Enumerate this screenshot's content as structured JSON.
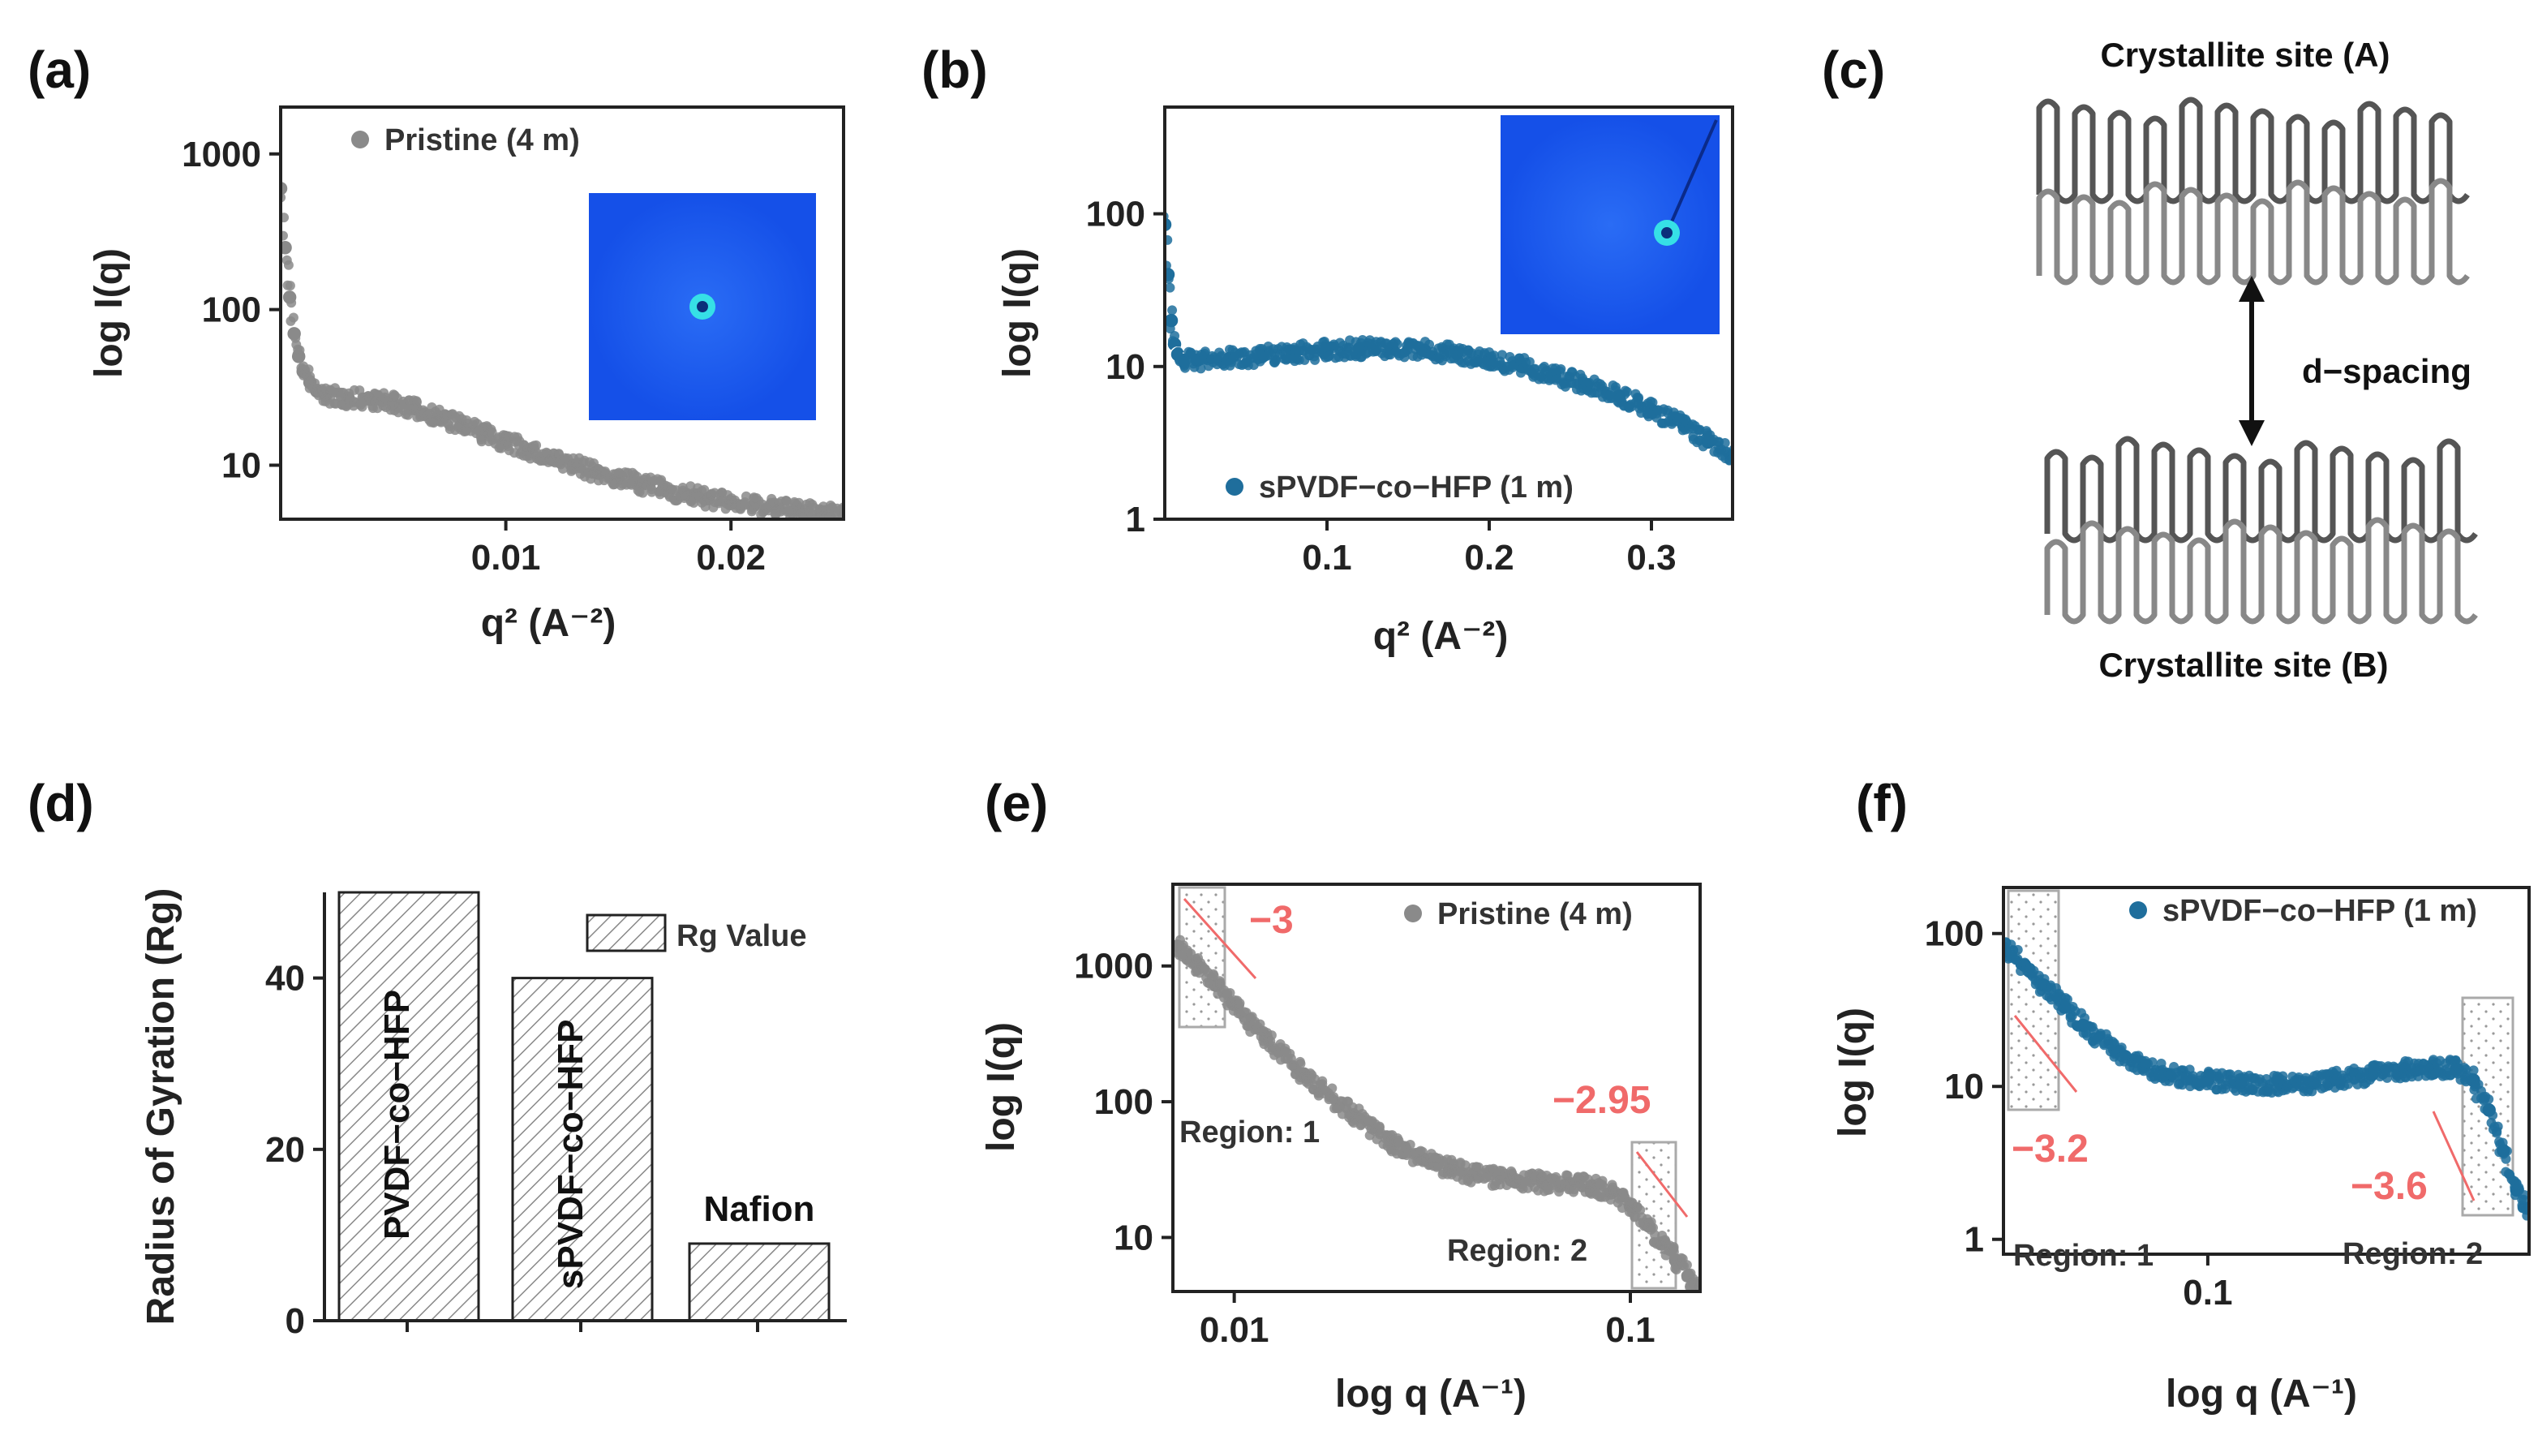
{
  "panels": [
    {
      "id": "a",
      "label": "(a)"
    },
    {
      "id": "b",
      "label": "(b)"
    },
    {
      "id": "c",
      "label": "(c)"
    },
    {
      "id": "d",
      "label": "(d)"
    },
    {
      "id": "e",
      "label": "(e)"
    },
    {
      "id": "f",
      "label": "(f)"
    }
  ],
  "colors": {
    "pristine": "#8a8a8a",
    "spvdf": "#1f6e9c",
    "slope": "#f06a6a",
    "inset_bg": "#1a5cf0",
    "inset_center": "#36e0e6"
  },
  "schematic": {
    "top_label": "Crystallite site (A)",
    "bottom_label": "Crystallite site (B)",
    "spacing_label": "d−spacing"
  },
  "chart_data": [
    {
      "id": "a",
      "type": "scatter",
      "xlabel": "q² (A⁻²)",
      "ylabel": "log I(q)",
      "yscale": "log",
      "xlim": [
        0,
        0.025
      ],
      "ylim": [
        4.5,
        2000
      ],
      "xticks": [
        {
          "v": 0.01,
          "t": "0.01"
        },
        {
          "v": 0.02,
          "t": "0.02"
        }
      ],
      "yticks": [
        {
          "v": 10,
          "t": "10"
        },
        {
          "v": 100,
          "t": "100"
        },
        {
          "v": 1000,
          "t": "1000"
        }
      ],
      "legend": {
        "text": "Pristine (4 m)",
        "position": "top-left"
      },
      "series": [
        {
          "name": "Pristine (4 m)",
          "color": "#8a8a8a",
          "x": [
            0,
            0.0002,
            0.0004,
            0.0006,
            0.0008,
            0.001,
            0.0013,
            0.0016,
            0.002,
            0.003,
            0.004,
            0.005,
            0.006,
            0.007,
            0.008,
            0.009,
            0.01,
            0.011,
            0.012,
            0.013,
            0.014,
            0.015,
            0.016,
            0.017,
            0.018,
            0.019,
            0.02,
            0.021,
            0.022,
            0.023,
            0.024,
            0.025
          ],
          "y": [
            600,
            250,
            120,
            70,
            50,
            40,
            34,
            30,
            28,
            27,
            26.5,
            25,
            23,
            20.5,
            18,
            16,
            14,
            12.5,
            11,
            10,
            9,
            8.2,
            7.6,
            7,
            6.5,
            6.1,
            5.8,
            5.5,
            5.3,
            5.1,
            5,
            4.9
          ]
        }
      ],
      "inset": "scattering pattern"
    },
    {
      "id": "b",
      "type": "scatter",
      "xlabel": "q² (A⁻²)",
      "ylabel": "log I(q)",
      "yscale": "log",
      "xlim": [
        0,
        0.35
      ],
      "ylim": [
        1,
        500
      ],
      "xticks": [
        {
          "v": 0.1,
          "t": "0.1"
        },
        {
          "v": 0.2,
          "t": "0.2"
        },
        {
          "v": 0.3,
          "t": "0.3"
        }
      ],
      "yticks": [
        {
          "v": 1,
          "t": "1"
        },
        {
          "v": 10,
          "t": "10"
        },
        {
          "v": 100,
          "t": "100"
        }
      ],
      "legend": {
        "text": "sPVDF−co−HFP (1 m)",
        "position": "bottom-center"
      },
      "series": [
        {
          "name": "sPVDF−co−HFP (1 m)",
          "color": "#1f6e9c",
          "x": [
            0,
            0.002,
            0.004,
            0.006,
            0.008,
            0.012,
            0.02,
            0.04,
            0.06,
            0.08,
            0.1,
            0.12,
            0.14,
            0.16,
            0.18,
            0.2,
            0.22,
            0.24,
            0.26,
            0.28,
            0.3,
            0.32,
            0.335,
            0.35
          ],
          "y": [
            85,
            40,
            20,
            14,
            12,
            11,
            11,
            11.3,
            11.8,
            12.3,
            12.8,
            13.1,
            13.1,
            12.8,
            12.2,
            11.2,
            10,
            8.8,
            7.6,
            6.4,
            5.2,
            4.1,
            3.2,
            2.6
          ]
        }
      ],
      "inset": "scattering pattern"
    },
    {
      "id": "d",
      "type": "bar",
      "ylabel": "Radius of Gyration (Rg)",
      "ylim": [
        0,
        50
      ],
      "yticks": [
        {
          "v": 0,
          "t": "0"
        },
        {
          "v": 20,
          "t": "20"
        },
        {
          "v": 40,
          "t": "40"
        }
      ],
      "categories": [
        "PVDF−co−HFP",
        "sPVDF−co−HFP",
        "Nafion"
      ],
      "values": [
        50,
        40,
        9
      ],
      "legend": {
        "text": "Rg Value",
        "position": "top-right"
      }
    },
    {
      "id": "e",
      "type": "scatter",
      "xlabel": "log q (A⁻¹)",
      "ylabel": "log I(q)",
      "xscale": "log",
      "yscale": "log",
      "xlim": [
        0.007,
        0.15
      ],
      "ylim": [
        4,
        4000
      ],
      "xticks": [
        {
          "v": 0.01,
          "t": "0.01"
        },
        {
          "v": 0.1,
          "t": "0.1"
        }
      ],
      "yticks": [
        {
          "v": 10,
          "t": "10"
        },
        {
          "v": 100,
          "t": "100"
        },
        {
          "v": 1000,
          "t": "1000"
        }
      ],
      "legend": {
        "text": "Pristine (4 m)",
        "position": "top-right"
      },
      "series": [
        {
          "name": "Pristine (4 m)",
          "color": "#8a8a8a",
          "x": [
            0.0072,
            0.008,
            0.009,
            0.01,
            0.012,
            0.015,
            0.02,
            0.025,
            0.03,
            0.035,
            0.04,
            0.05,
            0.06,
            0.07,
            0.08,
            0.09,
            0.1,
            0.11,
            0.12,
            0.13,
            0.14,
            0.15
          ],
          "y": [
            1400,
            1050,
            720,
            520,
            300,
            160,
            80,
            50,
            38,
            32,
            29,
            26.5,
            25.5,
            25,
            24,
            21.5,
            17,
            12.5,
            9,
            6.8,
            5.2,
            4.3
          ]
        }
      ],
      "annotations": [
        {
          "text": "−3",
          "slope": -3
        },
        {
          "text": "−2.95",
          "slope": -2.95
        },
        {
          "text": "Region: 1"
        },
        {
          "text": "Region: 2"
        }
      ]
    },
    {
      "id": "f",
      "type": "scatter",
      "xlabel": "log q (A⁻¹)",
      "ylabel": "log I(q)",
      "xscale": "log",
      "yscale": "log",
      "xlim": [
        0.032,
        0.6
      ],
      "ylim": [
        0.8,
        200
      ],
      "xticks": [
        {
          "v": 0.1,
          "t": "0.1"
        }
      ],
      "yticks": [
        {
          "v": 1,
          "t": "1"
        },
        {
          "v": 10,
          "t": "10"
        },
        {
          "v": 100,
          "t": "100"
        }
      ],
      "legend": {
        "text": "sPVDF−co−HFP (1 m)",
        "position": "top-right"
      },
      "series": [
        {
          "name": "sPVDF−co−HFP (1 m)",
          "color": "#1f6e9c",
          "x": [
            0.032,
            0.036,
            0.04,
            0.045,
            0.05,
            0.06,
            0.07,
            0.08,
            0.1,
            0.12,
            0.15,
            0.18,
            0.2,
            0.25,
            0.3,
            0.35,
            0.4,
            0.44,
            0.48,
            0.52,
            0.56,
            0.6
          ],
          "y": [
            80,
            62,
            46,
            33,
            25,
            17,
            13.5,
            12,
            11,
            10.5,
            10.3,
            10.5,
            11,
            12,
            13,
            13.5,
            13,
            11,
            7,
            3.8,
            2.1,
            1.6
          ]
        }
      ],
      "annotations": [
        {
          "text": "−3.2",
          "slope": -3.2
        },
        {
          "text": "−3.6",
          "slope": -3.6
        },
        {
          "text": "Region: 1"
        },
        {
          "text": "Region: 2"
        }
      ]
    }
  ]
}
